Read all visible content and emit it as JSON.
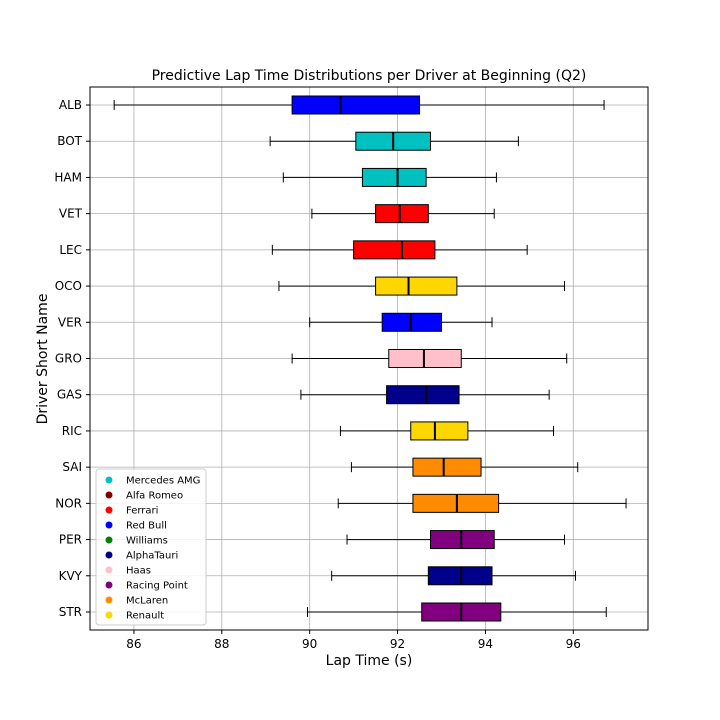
{
  "chart_data": {
    "type": "box",
    "title": "Predictive Lap Time Distributions per Driver at Beginning (Q2)",
    "xlabel": "Lap Time (s)",
    "ylabel": "Driver Short Name",
    "xlim": [
      85.0,
      97.7
    ],
    "xticks": [
      86,
      88,
      90,
      92,
      94,
      96
    ],
    "grid": true,
    "orientation": "horizontal",
    "legend": {
      "placement": "lower-left",
      "entries": [
        {
          "label": "Mercedes AMG",
          "color": "#00C0C0"
        },
        {
          "label": "Alfa Romeo",
          "color": "#800000"
        },
        {
          "label": "Ferrari",
          "color": "#FF0000"
        },
        {
          "label": "Red Bull",
          "color": "#0000FF"
        },
        {
          "label": "Williams",
          "color": "#008000"
        },
        {
          "label": "AlphaTauri",
          "color": "#00008B"
        },
        {
          "label": "Haas",
          "color": "#FFC0CB"
        },
        {
          "label": "Racing Point",
          "color": "#800080"
        },
        {
          "label": "McLaren",
          "color": "#FF8C00"
        },
        {
          "label": "Renault",
          "color": "#FFD700"
        }
      ]
    },
    "drivers": [
      {
        "name": "ALB",
        "team": "Red Bull",
        "color": "#0000FF",
        "whisker_low": 85.55,
        "q1": 89.6,
        "median": 90.7,
        "q3": 92.5,
        "whisker_high": 96.7
      },
      {
        "name": "BOT",
        "team": "Mercedes AMG",
        "color": "#00C0C0",
        "whisker_low": 89.1,
        "q1": 91.05,
        "median": 91.9,
        "q3": 92.75,
        "whisker_high": 94.75
      },
      {
        "name": "HAM",
        "team": "Mercedes AMG",
        "color": "#00C0C0",
        "whisker_low": 89.4,
        "q1": 91.2,
        "median": 92.0,
        "q3": 92.65,
        "whisker_high": 94.25
      },
      {
        "name": "VET",
        "team": "Ferrari",
        "color": "#FF0000",
        "whisker_low": 90.05,
        "q1": 91.5,
        "median": 92.05,
        "q3": 92.7,
        "whisker_high": 94.2
      },
      {
        "name": "LEC",
        "team": "Ferrari",
        "color": "#FF0000",
        "whisker_low": 89.15,
        "q1": 91.0,
        "median": 92.1,
        "q3": 92.85,
        "whisker_high": 94.95
      },
      {
        "name": "OCO",
        "team": "Renault",
        "color": "#FFD700",
        "whisker_low": 89.3,
        "q1": 91.5,
        "median": 92.25,
        "q3": 93.35,
        "whisker_high": 95.8
      },
      {
        "name": "VER",
        "team": "Red Bull",
        "color": "#0000FF",
        "whisker_low": 90.0,
        "q1": 91.65,
        "median": 92.3,
        "q3": 93.0,
        "whisker_high": 94.15
      },
      {
        "name": "GRO",
        "team": "Haas",
        "color": "#FFC0CB",
        "whisker_low": 89.6,
        "q1": 91.8,
        "median": 92.6,
        "q3": 93.45,
        "whisker_high": 95.85
      },
      {
        "name": "GAS",
        "team": "AlphaTauri",
        "color": "#00008B",
        "whisker_low": 89.8,
        "q1": 91.75,
        "median": 92.65,
        "q3": 93.4,
        "whisker_high": 95.45
      },
      {
        "name": "RIC",
        "team": "Renault",
        "color": "#FFD700",
        "whisker_low": 90.7,
        "q1": 92.3,
        "median": 92.85,
        "q3": 93.6,
        "whisker_high": 95.55
      },
      {
        "name": "SAI",
        "team": "McLaren",
        "color": "#FF8C00",
        "whisker_low": 90.95,
        "q1": 92.35,
        "median": 93.05,
        "q3": 93.9,
        "whisker_high": 96.1
      },
      {
        "name": "NOR",
        "team": "McLaren",
        "color": "#FF8C00",
        "whisker_low": 90.65,
        "q1": 92.35,
        "median": 93.35,
        "q3": 94.3,
        "whisker_high": 97.2
      },
      {
        "name": "PER",
        "team": "Racing Point",
        "color": "#800080",
        "whisker_low": 90.85,
        "q1": 92.75,
        "median": 93.45,
        "q3": 94.2,
        "whisker_high": 95.8
      },
      {
        "name": "KVY",
        "team": "AlphaTauri",
        "color": "#00008B",
        "whisker_low": 90.5,
        "q1": 92.7,
        "median": 93.45,
        "q3": 94.15,
        "whisker_high": 96.05
      },
      {
        "name": "STR",
        "team": "Racing Point",
        "color": "#800080",
        "whisker_low": 89.95,
        "q1": 92.55,
        "median": 93.45,
        "q3": 94.35,
        "whisker_high": 96.75
      }
    ]
  }
}
